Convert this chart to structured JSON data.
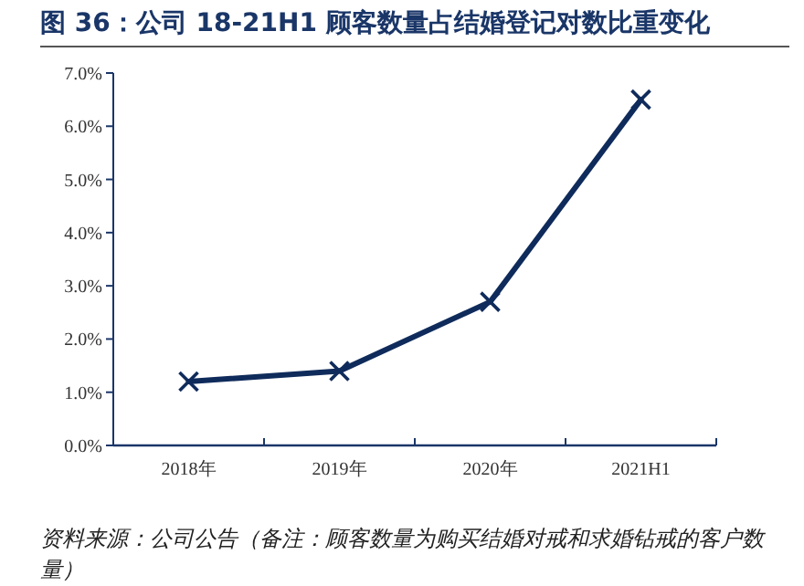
{
  "chart_data": {
    "type": "line",
    "title": "图 36：公司 18-21H1 顾客数量占结婚登记对数比重变化",
    "categories": [
      "2018年",
      "2019年",
      "2020年",
      "2021H1"
    ],
    "series": [
      {
        "color": "#0f2b5b",
        "values": [
          1.2,
          1.4,
          2.7,
          6.5
        ]
      }
    ],
    "ylim": [
      0,
      7
    ],
    "yticks": [
      {
        "value": 0,
        "label": "0.0%"
      },
      {
        "value": 1,
        "label": "1.0%"
      },
      {
        "value": 2,
        "label": "2.0%"
      },
      {
        "value": 3,
        "label": "3.0%"
      },
      {
        "value": 4,
        "label": "4.0%"
      },
      {
        "value": 5,
        "label": "5.0%"
      },
      {
        "value": 6,
        "label": "6.0%"
      },
      {
        "value": 7,
        "label": "7.0%"
      }
    ],
    "marker": "cross",
    "line_style": "solid",
    "annotations": [
      "资料来源：公司公告（备注：顾客数量为购买结婚对戒和求婚钻戒的客户数量）"
    ]
  }
}
